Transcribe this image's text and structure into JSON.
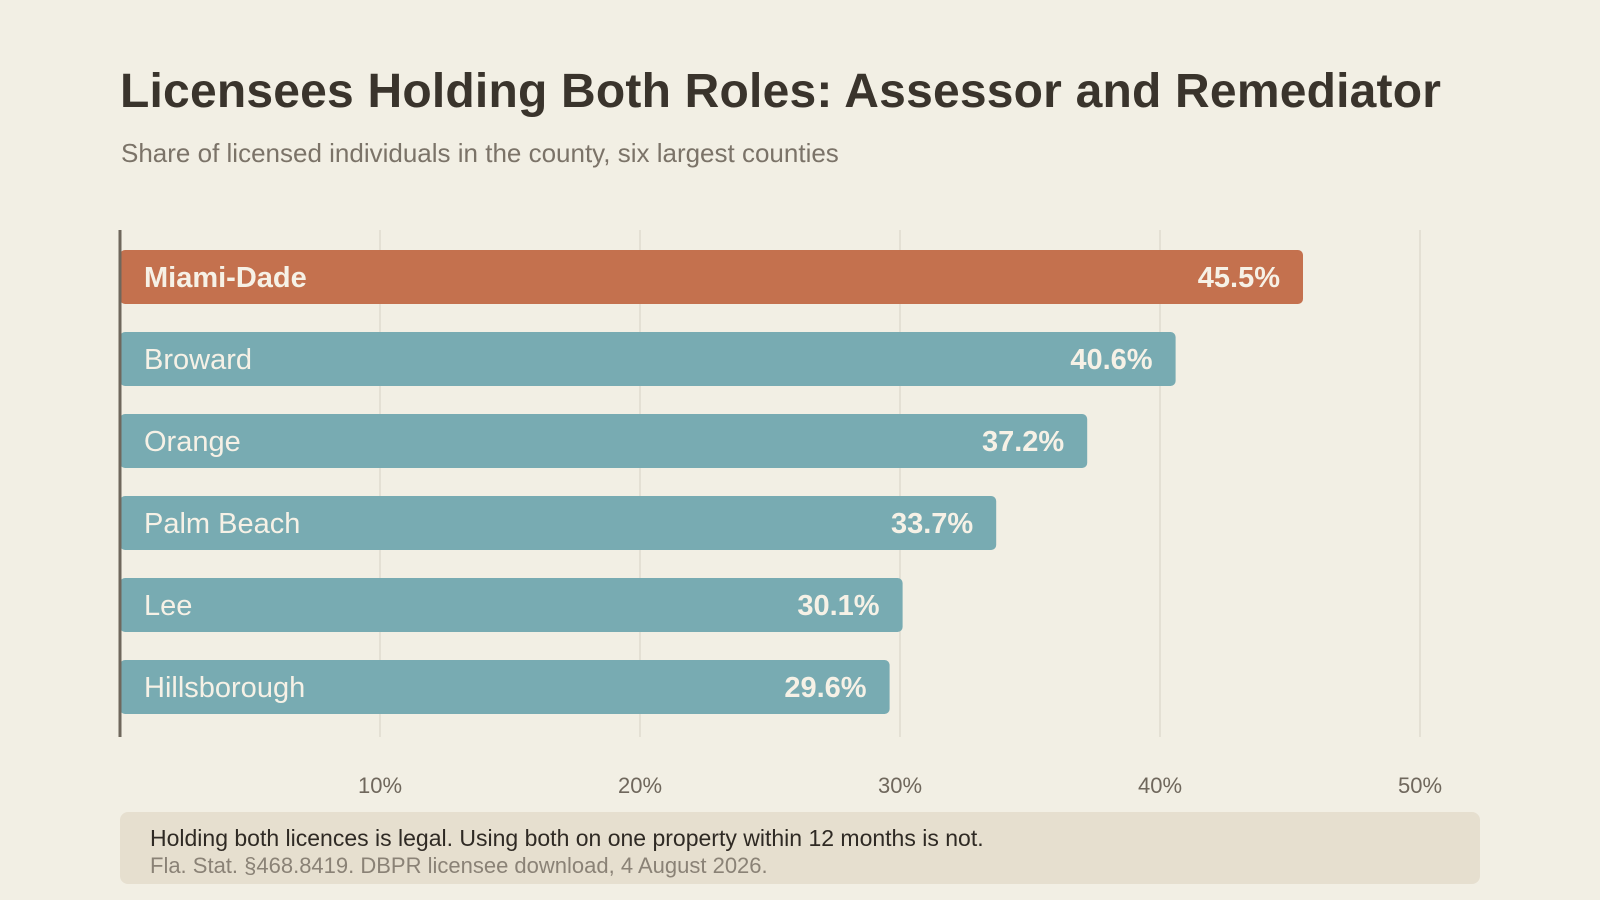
{
  "header": {
    "title": "Licensees Holding Both Roles: Assessor and Remediator",
    "subtitle": "Share of licensed individuals in the county, six largest counties"
  },
  "chart_data": {
    "type": "bar",
    "orientation": "horizontal",
    "title": "Licensees Holding Both Roles: Assessor and Remediator",
    "subtitle": "Share of licensed individuals in the county, six largest counties",
    "categories": [
      "Miami-Dade",
      "Broward",
      "Orange",
      "Palm Beach",
      "Lee",
      "Hillsborough"
    ],
    "values": [
      45.5,
      40.6,
      37.2,
      33.7,
      30.1,
      29.6
    ],
    "value_labels": [
      "45.5%",
      "40.6%",
      "37.2%",
      "33.7%",
      "30.1%",
      "29.6%"
    ],
    "highlight": "Miami-Dade",
    "xlim": [
      0,
      50
    ],
    "x_ticks": [
      10,
      20,
      30,
      40,
      50
    ],
    "x_tick_labels": [
      "10%",
      "20%",
      "30%",
      "40%",
      "50%"
    ],
    "grid": true,
    "xlabel": "",
    "ylabel": "",
    "colors": {
      "highlight": "#c4714e",
      "default": "#78abb2",
      "grid": "#e0dccf",
      "axis": "#6f675c",
      "tick_text": "#6f675c",
      "label_text": "#f6f1e6"
    }
  },
  "footnote": {
    "main": "Holding both licences is legal. Using both on one property within 12 months is not.",
    "source": "Fla. Stat. §468.8419. DBPR licensee download, 4 August 2026."
  }
}
